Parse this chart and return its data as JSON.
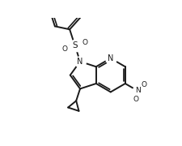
{
  "bg_color": "#ffffff",
  "line_color": "#1a1a1a",
  "lw": 1.4,
  "figsize": [
    2.25,
    1.8
  ],
  "dpi": 100,
  "xlim": [
    0,
    10
  ],
  "ylim": [
    0,
    8
  ],
  "BL": 1.2
}
